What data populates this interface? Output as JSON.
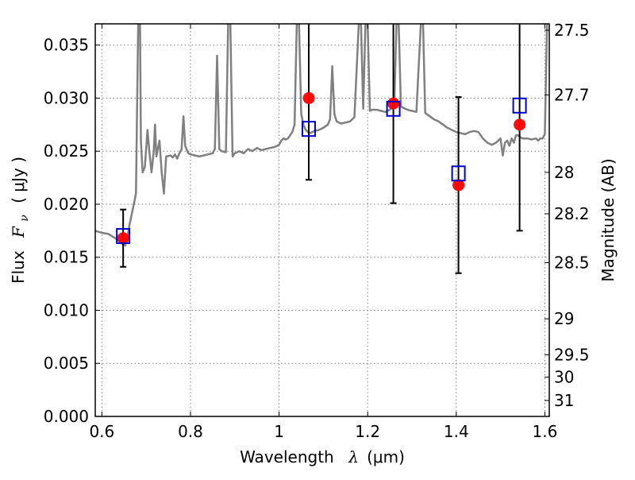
{
  "chart_data": {
    "type": "scatter",
    "xlabel_prefix": "Wavelength",
    "xlabel_symbol": "λ",
    "xlabel_unit": "(μm)",
    "ylabel_prefix": "Flux",
    "ylabel_symbol": "F",
    "ylabel_subscript": "ν",
    "ylabel_unit": "( μJy )",
    "y2label": "Magnitude (AB)",
    "xlim": [
      0.585,
      1.61
    ],
    "ylim": [
      0.0,
      0.037
    ],
    "grid": true,
    "grid_style": "dotted",
    "x_ticks": [
      0.6,
      0.8,
      1.0,
      1.2,
      1.4,
      1.6
    ],
    "x_tick_labels": [
      "0.6",
      "0.8",
      "1",
      "1.2",
      "1.4",
      "1.6"
    ],
    "y_ticks": [
      0.0,
      0.005,
      0.01,
      0.015,
      0.02,
      0.025,
      0.03,
      0.035
    ],
    "y_tick_labels": [
      "0.000",
      "0.005",
      "0.010",
      "0.015",
      "0.020",
      "0.025",
      "0.030",
      "0.035"
    ],
    "y2_ticks": [
      {
        "label": "27.5",
        "flux": 0.0364
      },
      {
        "label": "27.7",
        "flux": 0.0303
      },
      {
        "label": "28",
        "flux": 0.023
      },
      {
        "label": "28.2",
        "flux": 0.0191
      },
      {
        "label": "28.5",
        "flux": 0.0145
      },
      {
        "label": "29",
        "flux": 0.0092
      },
      {
        "label": "29.5",
        "flux": 0.0058
      },
      {
        "label": "30",
        "flux": 0.0037
      },
      {
        "label": "31",
        "flux": 0.0015
      }
    ],
    "colors": {
      "model_line": "#808080",
      "observed": "#ff0000",
      "model_photometry": "#0000cc",
      "errorbar": "#000000",
      "grid": "#808080",
      "frame": "#000000"
    },
    "series": [
      {
        "kind": "line",
        "points": [
          [
            0.585,
            0.0175
          ],
          [
            0.6,
            0.0173
          ],
          [
            0.615,
            0.0172
          ],
          [
            0.63,
            0.0168
          ],
          [
            0.64,
            0.0165
          ],
          [
            0.648,
            0.0162
          ],
          [
            0.653,
            0.0161
          ],
          [
            0.658,
            0.017
          ],
          [
            0.662,
            0.018
          ],
          [
            0.667,
            0.019
          ],
          [
            0.672,
            0.02
          ],
          [
            0.677,
            0.021
          ],
          [
            0.682,
            0.037
          ],
          [
            0.686,
            0.037
          ],
          [
            0.688,
            0.026
          ],
          [
            0.692,
            0.023
          ],
          [
            0.697,
            0.0235
          ],
          [
            0.703,
            0.027
          ],
          [
            0.707,
            0.025
          ],
          [
            0.712,
            0.023
          ],
          [
            0.717,
            0.025
          ],
          [
            0.72,
            0.0275
          ],
          [
            0.723,
            0.0245
          ],
          [
            0.73,
            0.026
          ],
          [
            0.735,
            0.023
          ],
          [
            0.74,
            0.021
          ],
          [
            0.745,
            0.0245
          ],
          [
            0.755,
            0.0246
          ],
          [
            0.76,
            0.0244
          ],
          [
            0.765,
            0.0247
          ],
          [
            0.77,
            0.0243
          ],
          [
            0.775,
            0.0248
          ],
          [
            0.78,
            0.0252
          ],
          [
            0.784,
            0.0283
          ],
          [
            0.788,
            0.0255
          ],
          [
            0.795,
            0.0248
          ],
          [
            0.8,
            0.0247
          ],
          [
            0.81,
            0.0246
          ],
          [
            0.82,
            0.0245
          ],
          [
            0.83,
            0.0246
          ],
          [
            0.84,
            0.0247
          ],
          [
            0.85,
            0.0248
          ],
          [
            0.855,
            0.0252
          ],
          [
            0.86,
            0.034
          ],
          [
            0.865,
            0.0252
          ],
          [
            0.87,
            0.025
          ],
          [
            0.88,
            0.0249
          ],
          [
            0.885,
            0.037
          ],
          [
            0.89,
            0.037
          ],
          [
            0.895,
            0.0245
          ],
          [
            0.9,
            0.0248
          ],
          [
            0.91,
            0.025
          ],
          [
            0.92,
            0.0248
          ],
          [
            0.93,
            0.0252
          ],
          [
            0.94,
            0.025
          ],
          [
            0.95,
            0.0253
          ],
          [
            0.96,
            0.0251
          ],
          [
            0.97,
            0.0252
          ],
          [
            0.98,
            0.0253
          ],
          [
            0.99,
            0.0254
          ],
          [
            1.0,
            0.0256
          ],
          [
            1.005,
            0.026
          ],
          [
            1.01,
            0.0262
          ],
          [
            1.015,
            0.0261
          ],
          [
            1.02,
            0.0262
          ],
          [
            1.025,
            0.0265
          ],
          [
            1.03,
            0.0268
          ],
          [
            1.035,
            0.0275
          ],
          [
            1.04,
            0.037
          ],
          [
            1.045,
            0.037
          ],
          [
            1.05,
            0.0285
          ],
          [
            1.055,
            0.0275
          ],
          [
            1.06,
            0.027
          ],
          [
            1.065,
            0.0268
          ],
          [
            1.07,
            0.0267
          ],
          [
            1.075,
            0.0268
          ],
          [
            1.08,
            0.0269
          ],
          [
            1.09,
            0.027
          ],
          [
            1.1,
            0.0272
          ],
          [
            1.11,
            0.0275
          ],
          [
            1.115,
            0.028
          ],
          [
            1.12,
            0.033
          ],
          [
            1.125,
            0.0285
          ],
          [
            1.13,
            0.0278
          ],
          [
            1.14,
            0.0276
          ],
          [
            1.15,
            0.0277
          ],
          [
            1.16,
            0.0278
          ],
          [
            1.17,
            0.0282
          ],
          [
            1.18,
            0.037
          ],
          [
            1.185,
            0.037
          ],
          [
            1.19,
            0.029
          ],
          [
            1.195,
            0.037
          ],
          [
            1.2,
            0.037
          ],
          [
            1.205,
            0.0288
          ],
          [
            1.21,
            0.0289
          ],
          [
            1.22,
            0.0289
          ],
          [
            1.23,
            0.0288
          ],
          [
            1.24,
            0.0287
          ],
          [
            1.25,
            0.0289
          ],
          [
            1.26,
            0.0293
          ],
          [
            1.265,
            0.037
          ],
          [
            1.27,
            0.037
          ],
          [
            1.275,
            0.0292
          ],
          [
            1.28,
            0.0291
          ],
          [
            1.29,
            0.0289
          ],
          [
            1.3,
            0.0288
          ],
          [
            1.31,
            0.0287
          ],
          [
            1.32,
            0.037
          ],
          [
            1.325,
            0.037
          ],
          [
            1.33,
            0.0286
          ],
          [
            1.34,
            0.0283
          ],
          [
            1.35,
            0.028
          ],
          [
            1.36,
            0.0278
          ],
          [
            1.37,
            0.0275
          ],
          [
            1.38,
            0.0272
          ],
          [
            1.39,
            0.027
          ],
          [
            1.4,
            0.0268
          ],
          [
            1.41,
            0.0267
          ],
          [
            1.42,
            0.0266
          ],
          [
            1.43,
            0.0268
          ],
          [
            1.44,
            0.0269
          ],
          [
            1.45,
            0.0268
          ],
          [
            1.46,
            0.0262
          ],
          [
            1.47,
            0.0258
          ],
          [
            1.48,
            0.0256
          ],
          [
            1.49,
            0.0258
          ],
          [
            1.5,
            0.0262
          ],
          [
            1.505,
            0.0246
          ],
          [
            1.51,
            0.0258
          ],
          [
            1.515,
            0.026
          ],
          [
            1.52,
            0.0255
          ],
          [
            1.525,
            0.0262
          ],
          [
            1.53,
            0.0258
          ],
          [
            1.535,
            0.0265
          ],
          [
            1.54,
            0.0265
          ],
          [
            1.545,
            0.0263
          ],
          [
            1.55,
            0.0262
          ],
          [
            1.56,
            0.0262
          ],
          [
            1.57,
            0.0261
          ],
          [
            1.58,
            0.0262
          ],
          [
            1.585,
            0.026
          ],
          [
            1.59,
            0.0262
          ],
          [
            1.595,
            0.0262
          ],
          [
            1.6,
            0.0266
          ],
          [
            1.605,
            0.037
          ]
        ]
      },
      {
        "kind": "observed",
        "points": [
          {
            "x": 0.648,
            "y": 0.0168,
            "yerr": 0.0027
          },
          {
            "x": 1.067,
            "y": 0.03,
            "yerr": 0.0077
          },
          {
            "x": 1.258,
            "y": 0.0295,
            "yerr": 0.0094
          },
          {
            "x": 1.405,
            "y": 0.0218,
            "yerr": 0.0083
          },
          {
            "x": 1.543,
            "y": 0.0275,
            "yerr": 0.01
          }
        ]
      },
      {
        "kind": "model_photometry",
        "points": [
          {
            "x": 0.648,
            "y": 0.017
          },
          {
            "x": 1.067,
            "y": 0.0271
          },
          {
            "x": 1.258,
            "y": 0.029
          },
          {
            "x": 1.405,
            "y": 0.0229
          },
          {
            "x": 1.543,
            "y": 0.0293
          }
        ]
      }
    ]
  }
}
